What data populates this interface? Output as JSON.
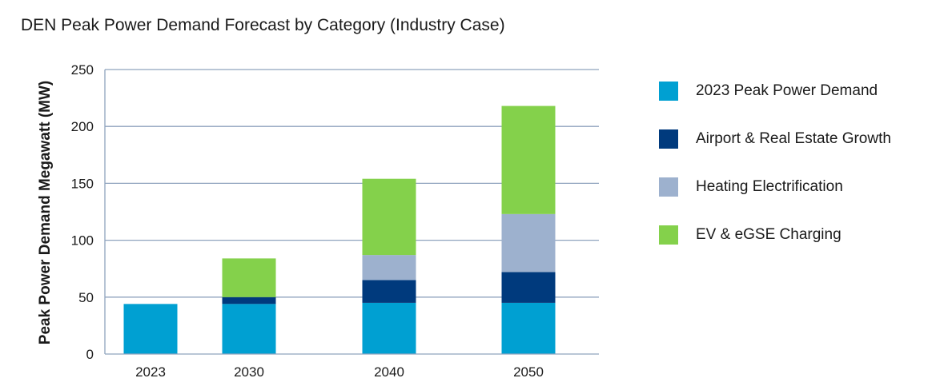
{
  "chart_data": {
    "type": "bar",
    "stacked": true,
    "title": "DEN Peak Power Demand Forecast by Category (Industry Case)",
    "xlabel": "",
    "ylabel": "Peak Power Demand Megawatt (MW)",
    "ylim": [
      0,
      250
    ],
    "yticks": [
      0,
      50,
      100,
      150,
      200,
      250
    ],
    "grid": true,
    "legend_position": "right",
    "categories": [
      "2023",
      "2030",
      "2040",
      "2050"
    ],
    "series": [
      {
        "name": "2023 Peak Power Demand",
        "color": "#00A0D2",
        "values": [
          44,
          44,
          45,
          45
        ]
      },
      {
        "name": "Airport & Real Estate Growth",
        "color": "#003A7D",
        "values": [
          0,
          6,
          20,
          27
        ]
      },
      {
        "name": "Heating Electrification",
        "color": "#9DB1CE",
        "values": [
          0,
          0,
          22,
          51
        ]
      },
      {
        "name": "EV & eGSE Charging",
        "color": "#84D14B",
        "values": [
          0,
          34,
          67,
          95
        ]
      }
    ]
  }
}
